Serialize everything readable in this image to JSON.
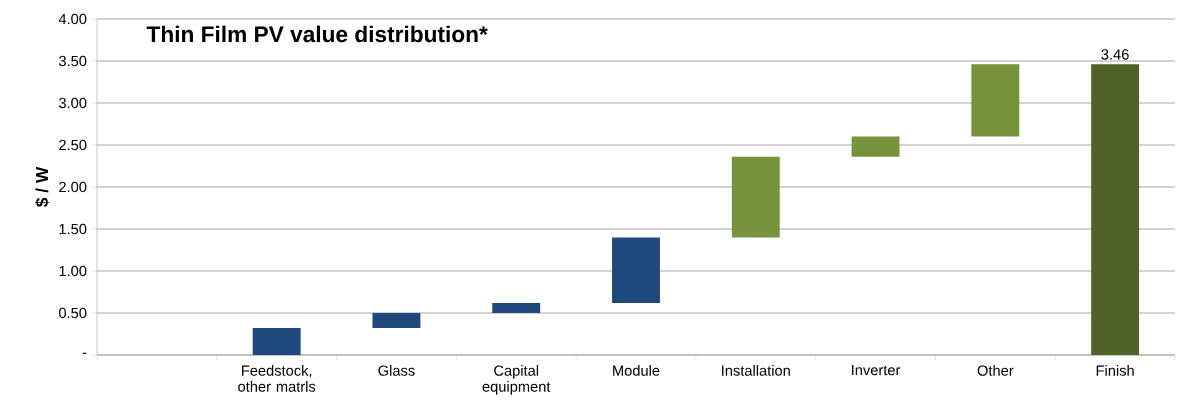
{
  "chart_data": {
    "type": "bar",
    "title": "Thin Film PV value distribution*",
    "ylabel": "$ / W",
    "categories": [
      null,
      "Feedstock, other matrls",
      "Glass",
      "Capital equipment",
      "Module",
      "Installation",
      "Inverter",
      "Other",
      "Finish"
    ],
    "base": [
      null,
      0,
      0.32,
      0.5,
      0.62,
      1.4,
      2.36,
      2.6,
      0
    ],
    "values": [
      null,
      0.32,
      0.18,
      0.12,
      0.78,
      0.96,
      0.24,
      0.86,
      3.46
    ],
    "colors": [
      null,
      "#1f497d",
      "#1f497d",
      "#1f497d",
      "#1f497d",
      "#77933c",
      "#77933c",
      "#77933c",
      "#4f6228"
    ],
    "value_labels": [
      null,
      null,
      null,
      null,
      null,
      null,
      null,
      null,
      "3.46"
    ],
    "ylim": [
      0,
      4
    ],
    "yticks": [
      {
        "value": 0,
        "label": "-"
      },
      {
        "value": 0.5,
        "label": "0.50"
      },
      {
        "value": 1,
        "label": "1.00"
      },
      {
        "value": 1.5,
        "label": "1.50"
      },
      {
        "value": 2,
        "label": "2.00"
      },
      {
        "value": 2.5,
        "label": "2.50"
      },
      {
        "value": 3,
        "label": "3.00"
      },
      {
        "value": 3.5,
        "label": "3.50"
      },
      {
        "value": 4,
        "label": "4.00"
      }
    ],
    "grid": "y"
  }
}
